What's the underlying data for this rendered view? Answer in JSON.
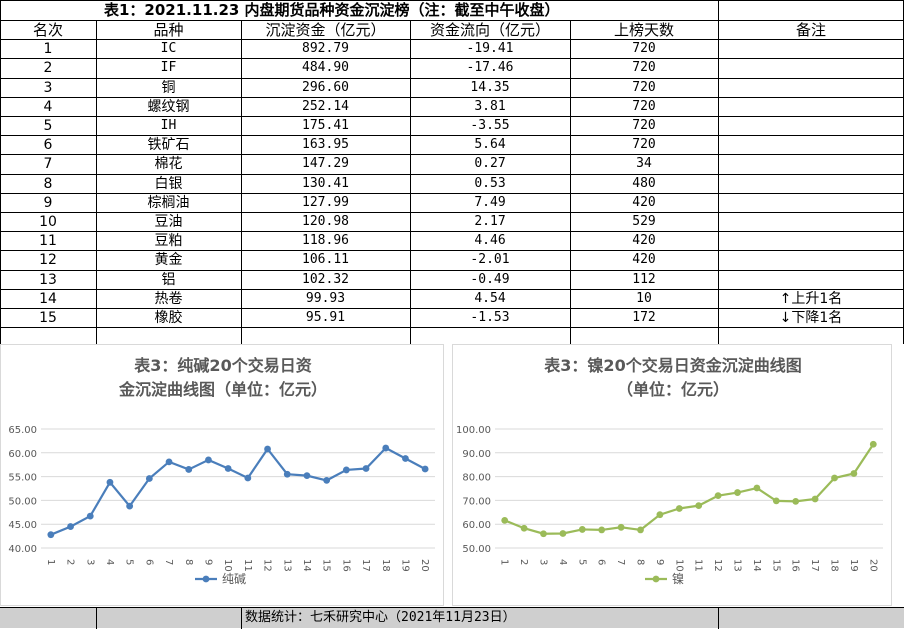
{
  "table": {
    "title": "表1：2021.11.23 内盘期货品种资金沉淀榜（注：截至中午收盘）",
    "headers": [
      "名次",
      "品种",
      "沉淀资金（亿元）",
      "资金流向（亿元）",
      "上榜天数",
      "备注"
    ],
    "rows": [
      {
        "rank": "1",
        "name": "IC",
        "fund": "892.79",
        "flow": "-19.41",
        "days": "720",
        "note": ""
      },
      {
        "rank": "2",
        "name": "IF",
        "fund": "484.90",
        "flow": "-17.46",
        "days": "720",
        "note": ""
      },
      {
        "rank": "3",
        "name": "铜",
        "fund": "296.60",
        "flow": "14.35",
        "days": "720",
        "note": ""
      },
      {
        "rank": "4",
        "name": "螺纹钢",
        "fund": "252.14",
        "flow": "3.81",
        "days": "720",
        "note": ""
      },
      {
        "rank": "5",
        "name": "IH",
        "fund": "175.41",
        "flow": "-3.55",
        "days": "720",
        "note": ""
      },
      {
        "rank": "6",
        "name": "铁矿石",
        "fund": "163.95",
        "flow": "5.64",
        "days": "720",
        "note": ""
      },
      {
        "rank": "7",
        "name": "棉花",
        "fund": "147.29",
        "flow": "0.27",
        "days": "34",
        "note": ""
      },
      {
        "rank": "8",
        "name": "白银",
        "fund": "130.41",
        "flow": "0.53",
        "days": "480",
        "note": ""
      },
      {
        "rank": "9",
        "name": "棕榈油",
        "fund": "127.99",
        "flow": "7.49",
        "days": "420",
        "note": ""
      },
      {
        "rank": "10",
        "name": "豆油",
        "fund": "120.98",
        "flow": "2.17",
        "days": "529",
        "note": ""
      },
      {
        "rank": "11",
        "name": "豆粕",
        "fund": "118.96",
        "flow": "4.46",
        "days": "420",
        "note": ""
      },
      {
        "rank": "12",
        "name": "黄金",
        "fund": "106.11",
        "flow": "-2.01",
        "days": "420",
        "note": ""
      },
      {
        "rank": "13",
        "name": "铝",
        "fund": "102.32",
        "flow": "-0.49",
        "days": "112",
        "note": ""
      },
      {
        "rank": "14",
        "name": "热卷",
        "fund": "99.93",
        "flow": "4.54",
        "days": "10",
        "note": "↑上升1名"
      },
      {
        "rank": "15",
        "name": "橡胶",
        "fund": "95.91",
        "flow": "-1.53",
        "days": "172",
        "note": "↓下降1名"
      }
    ]
  },
  "footer": "数据统计：七禾研究中心（2021年11月23日）",
  "chart_data": [
    {
      "type": "line",
      "title": "表3：纯碱20个交易日资金沉淀曲线图（单位：亿元）",
      "x": [
        1,
        2,
        3,
        4,
        5,
        6,
        7,
        8,
        9,
        10,
        11,
        12,
        13,
        14,
        15,
        16,
        17,
        18,
        19,
        20
      ],
      "series": [
        {
          "name": "纯碱",
          "values": [
            42.8,
            44.5,
            46.7,
            53.8,
            48.8,
            54.6,
            58.1,
            56.5,
            58.5,
            56.7,
            54.7,
            60.8,
            55.5,
            55.2,
            54.2,
            56.4,
            56.7,
            61.0,
            58.8,
            56.6
          ]
        }
      ],
      "ylim": [
        40,
        65
      ],
      "yticks": [
        "40.00",
        "45.00",
        "50.00",
        "55.00",
        "60.00",
        "65.00"
      ],
      "color": "#4a7ebb",
      "grid": true,
      "legend": "bottom"
    },
    {
      "type": "line",
      "title": "表3：镍20个交易日资金沉淀曲线图（单位：亿元）",
      "x": [
        1,
        2,
        3,
        4,
        5,
        6,
        7,
        8,
        9,
        10,
        11,
        12,
        13,
        14,
        15,
        16,
        17,
        18,
        19,
        20
      ],
      "series": [
        {
          "name": "镍",
          "values": [
            61.6,
            58.3,
            56.0,
            56.1,
            57.8,
            57.6,
            58.7,
            57.6,
            64.0,
            66.6,
            67.8,
            72.0,
            73.3,
            75.2,
            69.8,
            69.6,
            70.6,
            79.4,
            81.3,
            93.6
          ]
        }
      ],
      "ylim": [
        50,
        100
      ],
      "yticks": [
        "50.00",
        "60.00",
        "70.00",
        "80.00",
        "90.00",
        "100.00"
      ],
      "color": "#9bbb59",
      "grid": true,
      "legend": "bottom"
    }
  ]
}
